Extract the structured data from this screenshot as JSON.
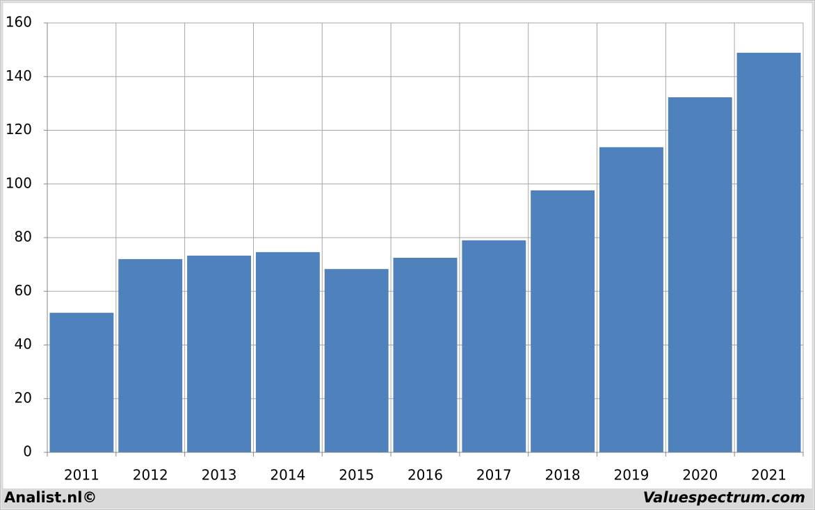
{
  "chart_data": {
    "type": "bar",
    "categories": [
      "2011",
      "2012",
      "2013",
      "2014",
      "2015",
      "2016",
      "2017",
      "2018",
      "2019",
      "2020",
      "2021"
    ],
    "values": [
      52.0,
      72.0,
      73.3,
      74.6,
      68.3,
      72.5,
      79.0,
      97.6,
      113.7,
      132.3,
      148.9
    ],
    "color": "#4f81bd",
    "ylim": [
      0,
      160
    ],
    "yticks": [
      0,
      20,
      40,
      60,
      80,
      100,
      120,
      140,
      160
    ],
    "grid": true,
    "watermarks": [
      "Analist.nl©",
      "Valuespectrum.com"
    ]
  }
}
